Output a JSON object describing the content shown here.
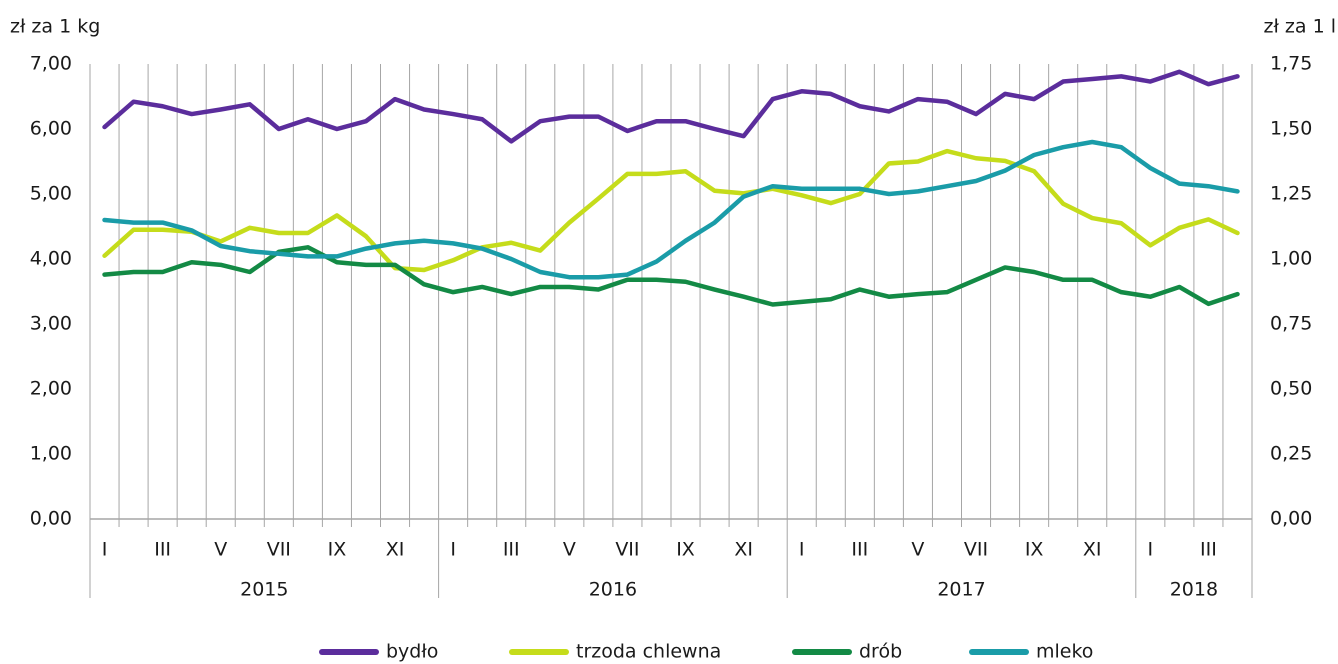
{
  "chart_data": {
    "type": "line",
    "y_label": "zł za 1 kg",
    "y2_label": "zł za 1 l",
    "categories": [
      "I",
      null,
      "III",
      null,
      "V",
      null,
      "VII",
      null,
      "IX",
      null,
      "XI",
      null,
      "I",
      null,
      "III",
      null,
      "V",
      null,
      "VII",
      null,
      "IX",
      null,
      "XI",
      null,
      "I",
      null,
      "III",
      null,
      "V",
      null,
      "VII",
      null,
      "IX",
      null,
      "XI",
      null,
      "I",
      null,
      "III",
      null
    ],
    "years": [
      "2015",
      "2016",
      "2017",
      "2018"
    ],
    "ylim": [
      0,
      7
    ],
    "yticks": [
      {
        "value": 0,
        "label": "0,00"
      },
      {
        "value": 1,
        "label": "1,00"
      },
      {
        "value": 2,
        "label": "2,00"
      },
      {
        "value": 3,
        "label": "3,00"
      },
      {
        "value": 4,
        "label": "4,00"
      },
      {
        "value": 5,
        "label": "5,00"
      },
      {
        "value": 6,
        "label": "6,00"
      },
      {
        "value": 7,
        "label": "7,00"
      }
    ],
    "y2lim": [
      0,
      1.75
    ],
    "y2ticks": [
      {
        "value": 0,
        "label": "0,00"
      },
      {
        "value": 0.25,
        "label": "0,25"
      },
      {
        "value": 0.5,
        "label": "0,50"
      },
      {
        "value": 0.75,
        "label": "0,75"
      },
      {
        "value": 1,
        "label": "1,00"
      },
      {
        "value": 1.25,
        "label": "1,25"
      },
      {
        "value": 1.5,
        "label": "1,50"
      },
      {
        "value": 1.75,
        "label": "1,75"
      }
    ],
    "legend": "bottom",
    "series": [
      {
        "name": "bydło",
        "color": "#5b2d9c",
        "values": [
          6.03,
          6.42,
          6.35,
          6.23,
          6.3,
          6.38,
          6.0,
          6.15,
          6.0,
          6.12,
          6.46,
          6.3,
          6.23,
          6.15,
          5.81,
          6.12,
          6.19,
          6.19,
          5.97,
          6.12,
          6.12,
          6.0,
          5.89,
          6.46,
          6.58,
          6.54,
          6.35,
          6.27,
          6.46,
          6.42,
          6.23,
          6.54,
          6.46,
          6.73,
          6.77,
          6.81,
          6.73,
          6.88,
          6.69,
          6.81
        ]
      },
      {
        "name": "trzoda chlewna",
        "color": "#c5dc1b",
        "values": [
          4.05,
          4.45,
          4.45,
          4.42,
          4.27,
          4.48,
          4.4,
          4.4,
          4.67,
          4.35,
          3.86,
          3.83,
          3.98,
          4.18,
          4.25,
          4.13,
          4.56,
          4.93,
          5.31,
          5.31,
          5.35,
          5.05,
          5.01,
          5.08,
          4.98,
          4.86,
          5.0,
          5.47,
          5.5,
          5.66,
          5.55,
          5.51,
          5.35,
          4.85,
          4.63,
          4.55,
          4.21,
          4.48,
          4.61,
          4.4
        ]
      },
      {
        "name": "drób",
        "color": "#138a45",
        "values": [
          3.76,
          3.8,
          3.8,
          3.95,
          3.91,
          3.8,
          4.11,
          4.18,
          3.95,
          3.91,
          3.91,
          3.61,
          3.49,
          3.57,
          3.46,
          3.57,
          3.57,
          3.53,
          3.68,
          3.68,
          3.65,
          3.53,
          3.42,
          3.3,
          3.34,
          3.38,
          3.53,
          3.42,
          3.46,
          3.49,
          3.68,
          3.87,
          3.8,
          3.68,
          3.68,
          3.49,
          3.42,
          3.57,
          3.31,
          3.46
        ]
      },
      {
        "name": "mleko",
        "color": "#1a9ca8",
        "axis": "y2",
        "values": [
          1.15,
          1.14,
          1.14,
          1.11,
          1.05,
          1.03,
          1.02,
          1.01,
          1.01,
          1.04,
          1.06,
          1.07,
          1.06,
          1.04,
          1.0,
          0.95,
          0.93,
          0.93,
          0.94,
          0.99,
          1.07,
          1.14,
          1.24,
          1.28,
          1.27,
          1.27,
          1.27,
          1.25,
          1.26,
          1.28,
          1.3,
          1.34,
          1.4,
          1.43,
          1.45,
          1.43,
          1.35,
          1.29,
          1.28,
          1.26
        ]
      }
    ]
  }
}
